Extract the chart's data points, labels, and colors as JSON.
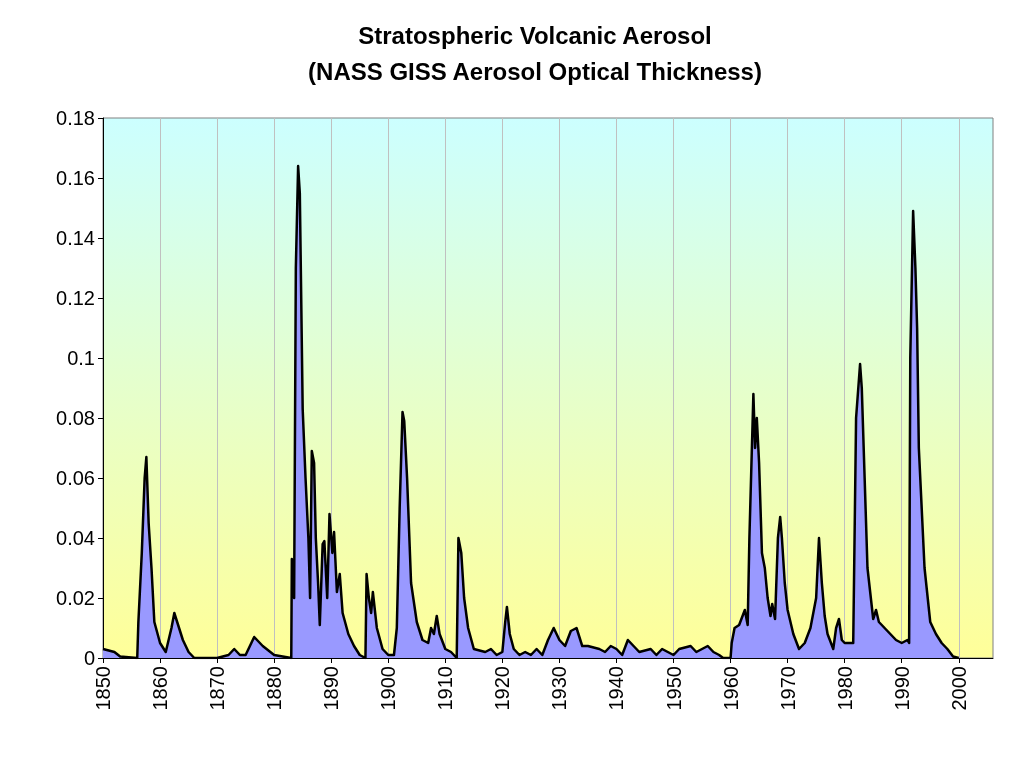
{
  "chart_data": {
    "type": "area",
    "title": "Stratospheric Volcanic Aerosol\n(NASS GISS Aerosol Optical Thickness)",
    "xlim": [
      1850,
      2006
    ],
    "xticks": [
      1850,
      1860,
      1870,
      1880,
      1890,
      1900,
      1910,
      1920,
      1930,
      1940,
      1950,
      1960,
      1970,
      1980,
      1990,
      2000
    ],
    "ylim": [
      0,
      0.18
    ],
    "yticks": [
      0,
      0.02,
      0.04,
      0.06,
      0.08,
      0.1,
      0.12,
      0.14,
      0.16,
      0.18
    ],
    "grid": "x",
    "series": [
      {
        "color": "#9999ff",
        "x": [
          1850,
          1852,
          1853,
          1856,
          1856.2,
          1856.8,
          1857.3,
          1857.6,
          1858,
          1858.5,
          1859,
          1860,
          1861,
          1862,
          1862.5,
          1863,
          1864,
          1865,
          1866,
          1870,
          1872,
          1873,
          1874,
          1875,
          1876,
          1876.5,
          1878,
          1880,
          1883,
          1883.1,
          1883.5,
          1883.8,
          1884.2,
          1884.5,
          1885,
          1885.5,
          1886,
          1886.3,
          1886.6,
          1887,
          1887.3,
          1887.7,
          1888,
          1888.5,
          1888.8,
          1889.3,
          1889.7,
          1890.2,
          1890.5,
          1891,
          1891.5,
          1892,
          1893,
          1894,
          1895,
          1896,
          1896.2,
          1896.6,
          1897,
          1897.3,
          1898,
          1899,
          1900,
          1901,
          1901.5,
          1902,
          1902.5,
          1902.8,
          1903.3,
          1903.7,
          1904,
          1905,
          1906,
          1907,
          1907.5,
          1908,
          1908.5,
          1909,
          1910,
          1911,
          1912,
          1912.3,
          1912.8,
          1913.3,
          1914,
          1915,
          1917,
          1918,
          1919,
          1920,
          1920.5,
          1920.8,
          1921.3,
          1922,
          1923,
          1924,
          1925,
          1926,
          1927,
          1928,
          1929,
          1930,
          1931,
          1932,
          1933,
          1934,
          1935,
          1937,
          1938,
          1939,
          1940,
          1941,
          1942,
          1943,
          1944,
          1946,
          1947,
          1948,
          1950,
          1951,
          1953,
          1954,
          1955,
          1956,
          1957,
          1958,
          1958.7,
          1960,
          1960.2,
          1960.7,
          1961.5,
          1962.5,
          1963,
          1963.3,
          1964,
          1964.3,
          1964.6,
          1965,
          1965.5,
          1966,
          1966.5,
          1967,
          1967.3,
          1967.8,
          1968.3,
          1968.7,
          1969,
          1969.5,
          1970,
          1971,
          1972,
          1973,
          1974,
          1975,
          1975.5,
          1976,
          1976.5,
          1977,
          1978,
          1978.5,
          1979,
          1979.5,
          1980,
          1981.5,
          1982,
          1982.7,
          1983,
          1983.5,
          1984,
          1985,
          1985.5,
          1986,
          1987,
          1988,
          1989,
          1990,
          1991,
          1991.3,
          1991.5,
          1992,
          1992.4,
          1992.7,
          1993,
          1994,
          1995,
          1996,
          1997,
          1998,
          1999,
          2000
        ],
        "values": [
          0.003,
          0.002,
          0.0005,
          0,
          0.012,
          0.035,
          0.06,
          0.067,
          0.045,
          0.03,
          0.012,
          0.005,
          0.002,
          0.01,
          0.015,
          0.012,
          0.006,
          0.002,
          0,
          0,
          0.001,
          0.003,
          0.001,
          0.001,
          0.005,
          0.007,
          0.004,
          0.001,
          0,
          0.033,
          0.02,
          0.13,
          0.164,
          0.155,
          0.083,
          0.06,
          0.04,
          0.02,
          0.069,
          0.065,
          0.04,
          0.025,
          0.011,
          0.038,
          0.039,
          0.02,
          0.048,
          0.035,
          0.042,
          0.022,
          0.028,
          0.015,
          0.008,
          0.004,
          0.001,
          0,
          0.028,
          0.02,
          0.015,
          0.022,
          0.01,
          0.003,
          0.001,
          0.001,
          0.01,
          0.05,
          0.082,
          0.079,
          0.06,
          0.04,
          0.025,
          0.012,
          0.006,
          0.005,
          0.01,
          0.008,
          0.014,
          0.008,
          0.003,
          0.002,
          0,
          0.04,
          0.035,
          0.02,
          0.01,
          0.003,
          0.002,
          0.003,
          0.001,
          0.002,
          0.012,
          0.017,
          0.008,
          0.003,
          0.001,
          0.002,
          0.001,
          0.003,
          0.001,
          0.006,
          0.01,
          0.006,
          0.004,
          0.009,
          0.01,
          0.004,
          0.004,
          0.003,
          0.002,
          0.004,
          0.003,
          0.001,
          0.006,
          0.004,
          0.002,
          0.003,
          0.001,
          0.003,
          0.001,
          0.003,
          0.004,
          0.002,
          0.003,
          0.004,
          0.002,
          0.001,
          0,
          0,
          0.005,
          0.01,
          0.011,
          0.016,
          0.011,
          0.04,
          0.088,
          0.07,
          0.08,
          0.065,
          0.035,
          0.03,
          0.02,
          0.014,
          0.018,
          0.013,
          0.04,
          0.047,
          0.04,
          0.025,
          0.016,
          0.008,
          0.003,
          0.005,
          0.01,
          0.02,
          0.04,
          0.025,
          0.014,
          0.008,
          0.003,
          0.01,
          0.013,
          0.006,
          0.005,
          0.005,
          0.08,
          0.098,
          0.09,
          0.06,
          0.03,
          0.013,
          0.016,
          0.012,
          0.01,
          0.008,
          0.006,
          0.005,
          0.006,
          0.005,
          0.1,
          0.149,
          0.13,
          0.11,
          0.07,
          0.03,
          0.012,
          0.008,
          0.005,
          0.003,
          0.0005,
          0
        ]
      }
    ]
  }
}
